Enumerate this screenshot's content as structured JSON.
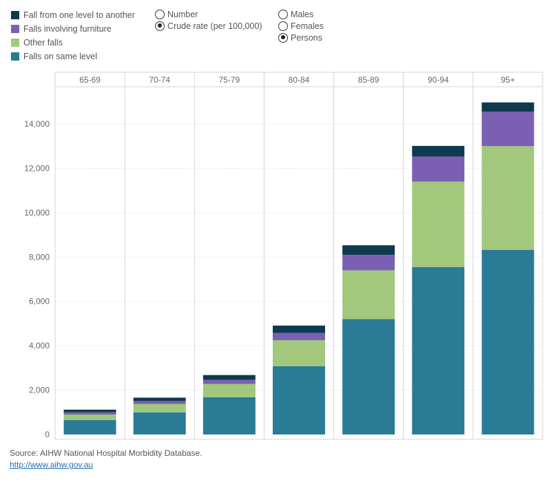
{
  "legend": {
    "items": [
      {
        "label": "Fall from one level to another",
        "color": "#0d3a4e"
      },
      {
        "label": "Falls involving furniture",
        "color": "#7b5fb3"
      },
      {
        "label": "Other falls",
        "color": "#a1c87c"
      },
      {
        "label": "Falls on same level",
        "color": "#2a7b96"
      }
    ]
  },
  "measure_toggle": {
    "options": [
      {
        "label": "Number",
        "selected": false
      },
      {
        "label": "Crude rate (per 100,000)",
        "selected": true
      }
    ]
  },
  "sex_toggle": {
    "options": [
      {
        "label": "Males",
        "selected": false
      },
      {
        "label": "Females",
        "selected": false
      },
      {
        "label": "Persons",
        "selected": true
      }
    ]
  },
  "chart_data": {
    "type": "bar",
    "stacked": true,
    "categories": [
      "65-69",
      "70-74",
      "75-79",
      "80-84",
      "85-89",
      "90-94",
      "95+"
    ],
    "series": [
      {
        "name": "Falls on same level",
        "color": "#2a7b96",
        "values": [
          650,
          1000,
          1680,
          3080,
          5200,
          7550,
          8320
        ]
      },
      {
        "name": "Other falls",
        "color": "#a1c87c",
        "values": [
          250,
          380,
          600,
          1170,
          2200,
          3850,
          4680
        ]
      },
      {
        "name": "Falls involving furniture",
        "color": "#7b5fb3",
        "values": [
          100,
          130,
          180,
          330,
          700,
          1130,
          1550
        ]
      },
      {
        "name": "Fall from one level to another",
        "color": "#0d3a4e",
        "values": [
          120,
          150,
          220,
          330,
          430,
          480,
          420
        ]
      }
    ],
    "ylim": [
      0,
      15500
    ],
    "yticks": [
      0,
      2000,
      4000,
      6000,
      8000,
      10000,
      12000,
      14000
    ],
    "ytick_labels": [
      "0",
      "2,000",
      "4,000",
      "6,000",
      "8,000",
      "10,000",
      "12,000",
      "14,000"
    ],
    "grid": true
  },
  "source": {
    "text": "Source: AIHW National Hospital Morbidity Database.",
    "link": "http://www.aihw.gov.au"
  }
}
